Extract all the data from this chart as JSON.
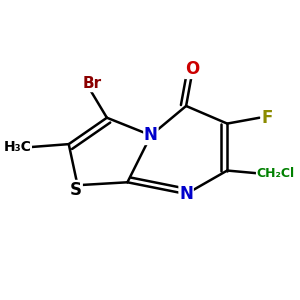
{
  "background_color": "#ffffff",
  "bond_color": "#000000",
  "atom_colors": {
    "Br": "#8B0000",
    "O": "#CC0000",
    "F": "#8B8B00",
    "N": "#0000CC",
    "S": "#000000",
    "C": "#000000",
    "Cl": "#008000",
    "CH3": "#000000"
  },
  "figsize": [
    3.0,
    3.0
  ],
  "dpi": 100
}
